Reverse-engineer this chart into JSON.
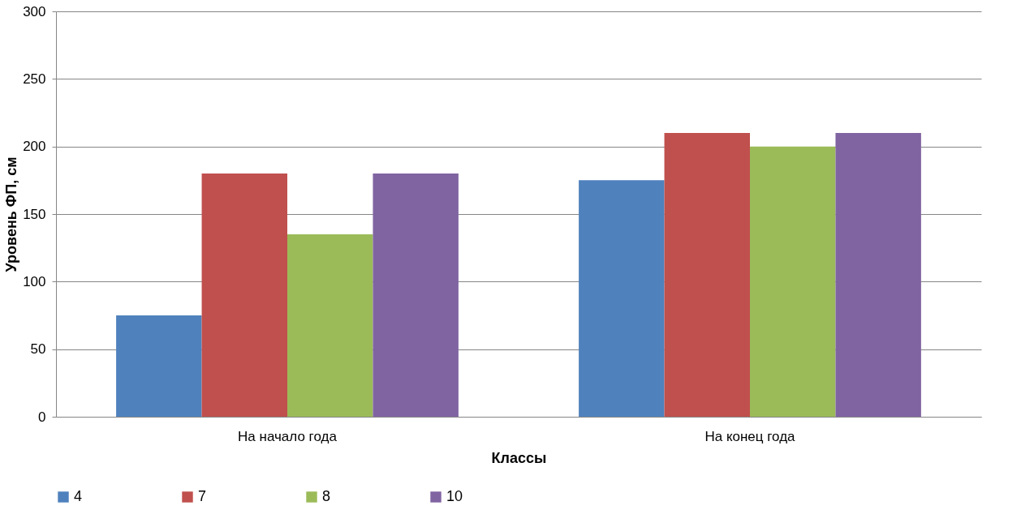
{
  "chart_data": {
    "type": "bar",
    "xlabel": "Классы",
    "ylabel": "Уровень ФП, см",
    "categories": [
      "На начало года",
      "На конец года"
    ],
    "series": [
      {
        "name": "4",
        "color": "#4f81bd",
        "values": [
          75,
          175
        ]
      },
      {
        "name": "7",
        "color": "#c0504d",
        "values": [
          180,
          210
        ]
      },
      {
        "name": "8",
        "color": "#9bbb59",
        "values": [
          135,
          200
        ]
      },
      {
        "name": "10",
        "color": "#8064a2",
        "values": [
          180,
          210
        ]
      }
    ],
    "ylim": [
      0,
      300
    ],
    "yticks": [
      0,
      50,
      100,
      150,
      200,
      250,
      300
    ],
    "grid": "y",
    "legend": "bottom"
  }
}
